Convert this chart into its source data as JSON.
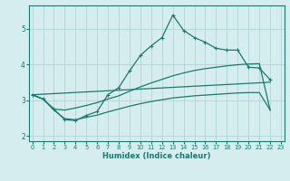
{
  "xlabel": "Humidex (Indice chaleur)",
  "bg_color": "#d5edef",
  "line_color": "#1a7a6e",
  "grid_color": "#b0d5d8",
  "x_ticks": [
    0,
    1,
    2,
    3,
    4,
    5,
    6,
    7,
    8,
    9,
    10,
    11,
    12,
    13,
    14,
    15,
    16,
    17,
    18,
    19,
    20,
    21,
    22,
    23
  ],
  "y_ticks": [
    2,
    3,
    4,
    5
  ],
  "ylim": [
    1.85,
    5.65
  ],
  "xlim": [
    -0.3,
    23.3
  ],
  "curve1_x": [
    0,
    1,
    2,
    3,
    4,
    5,
    6,
    7,
    8,
    9,
    10,
    11,
    12,
    13,
    14,
    15,
    16,
    17,
    18,
    19,
    20,
    21,
    22
  ],
  "curve1_y": [
    3.15,
    3.03,
    2.75,
    2.45,
    2.43,
    2.57,
    2.68,
    3.15,
    3.35,
    3.82,
    4.25,
    4.52,
    4.75,
    5.38,
    4.95,
    4.75,
    4.62,
    4.45,
    4.4,
    4.4,
    3.92,
    3.9,
    3.57
  ],
  "curve2_x": [
    0,
    1,
    2,
    3,
    4,
    5,
    6,
    7,
    8,
    9,
    10,
    11,
    12,
    13,
    14,
    15,
    16,
    17,
    18,
    19,
    20,
    21,
    22
  ],
  "curve2_y": [
    3.15,
    3.03,
    2.75,
    2.72,
    2.78,
    2.85,
    2.93,
    3.03,
    3.12,
    3.25,
    3.37,
    3.48,
    3.58,
    3.68,
    3.76,
    3.83,
    3.88,
    3.92,
    3.96,
    3.99,
    4.01,
    4.02,
    2.72
  ],
  "curve3_x": [
    0,
    1,
    2,
    3,
    4,
    5,
    6,
    7,
    8,
    9,
    10,
    11,
    12,
    13,
    14,
    15,
    16,
    17,
    18,
    19,
    20,
    21,
    22
  ],
  "curve3_y": [
    3.15,
    3.03,
    2.72,
    2.48,
    2.45,
    2.52,
    2.58,
    2.67,
    2.75,
    2.83,
    2.9,
    2.96,
    3.01,
    3.06,
    3.09,
    3.12,
    3.14,
    3.16,
    3.18,
    3.2,
    3.21,
    3.21,
    2.72
  ],
  "curve4_x": [
    0,
    22
  ],
  "curve4_y": [
    3.15,
    3.5
  ]
}
